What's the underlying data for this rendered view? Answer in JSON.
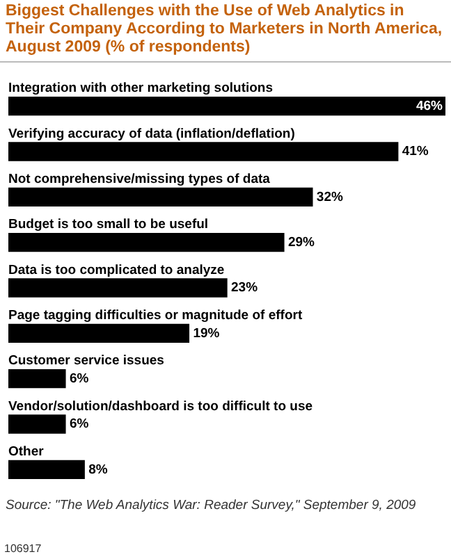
{
  "chart_data": {
    "type": "bar",
    "orientation": "horizontal",
    "title": "Biggest Challenges with the Use of Web Analytics in Their Company According to Marketers in North America, August 2009 (% of respondents)",
    "categories": [
      "Integration with other marketing solutions",
      "Verifying accuracy of data (inflation/deflation)",
      "Not comprehensive/missing types of data",
      "Budget is too small to be useful",
      "Data is too complicated to analyze",
      "Page tagging difficulties or magnitude of effort",
      "Customer service issues",
      "Vendor/solution/dashboard is too difficult to use",
      "Other"
    ],
    "values": [
      46,
      41,
      32,
      29,
      23,
      19,
      6,
      6,
      8
    ],
    "value_labels": [
      "46%",
      "41%",
      "32%",
      "29%",
      "23%",
      "19%",
      "6%",
      "6%",
      "8%"
    ],
    "color": "#000000",
    "legend": false,
    "tick_labels": false,
    "annotations": [
      "Source: \"The Web Analytics War: Reader Survey,\" September 9, 2009",
      "106917"
    ]
  }
}
